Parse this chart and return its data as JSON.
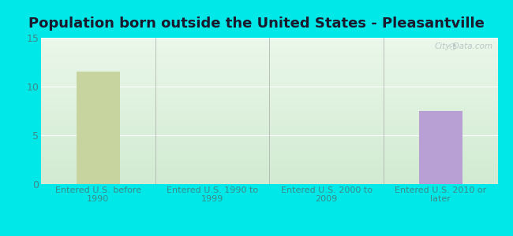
{
  "title": "Population born outside the United States - Pleasantville",
  "categories": [
    "Entered U.S. before\n1990",
    "Entered U.S. 1990 to\n1999",
    "Entered U.S. 2000 to\n2009",
    "Entered U.S. 2010 or\nlater"
  ],
  "values": [
    11.5,
    0,
    0,
    7.5
  ],
  "bar_colors": [
    "#c8d4a0",
    "#c8d4a0",
    "#c8d4a0",
    "#b89fd4"
  ],
  "ylim": [
    0,
    15
  ],
  "yticks": [
    0,
    5,
    10,
    15
  ],
  "background_color": "#00e8e8",
  "plot_bg_color_topleft": "#d8eed8",
  "plot_bg_color_topright": "#f0f8f0",
  "plot_bg_color_bottom": "#d0e8d0",
  "title_fontsize": 13,
  "title_color": "#1a1a2e",
  "tick_label_color": "#3a8a8a",
  "grid_color": "#ffffff",
  "legend_native_color": "#c9a0dc",
  "legend_foreign_color": "#c8d4a0",
  "watermark_text": "City-Data.com",
  "watermark_color": "#b0c0c0",
  "bar_width": 0.38
}
